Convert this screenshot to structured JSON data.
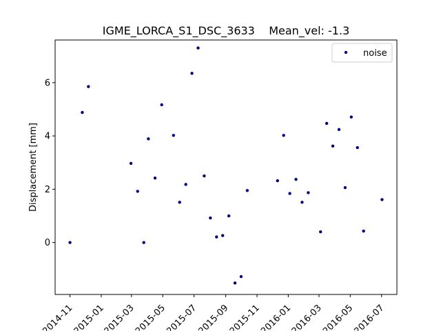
{
  "chart_data": {
    "type": "scatter",
    "title": "IGME_LORCA_S1_DSC_3633    Mean_vel: -1.3",
    "xlabel": "",
    "ylabel": "Displacement [mm]",
    "xlim": [
      "2014-10-03",
      "2016-07-31"
    ],
    "ylim": [
      -1.95,
      7.6
    ],
    "grid": false,
    "legend_position": "top-right",
    "x_ticks": [
      "2014-11",
      "2015-01",
      "2015-03",
      "2015-05",
      "2015-07",
      "2015-09",
      "2015-11",
      "2016-01",
      "2016-03",
      "2016-05",
      "2016-07"
    ],
    "y_ticks": [
      0,
      2,
      4,
      6
    ],
    "series": [
      {
        "name": "noise",
        "color": "#00007f",
        "marker": "point",
        "points": [
          {
            "x": "2014-11-01",
            "y": 0.0
          },
          {
            "x": "2014-11-25",
            "y": 4.88
          },
          {
            "x": "2014-12-07",
            "y": 5.85
          },
          {
            "x": "2015-02-28",
            "y": 2.97
          },
          {
            "x": "2015-03-13",
            "y": 1.92
          },
          {
            "x": "2015-03-25",
            "y": 0.0
          },
          {
            "x": "2015-04-03",
            "y": 3.89
          },
          {
            "x": "2015-04-16",
            "y": 2.42
          },
          {
            "x": "2015-04-29",
            "y": 5.17
          },
          {
            "x": "2015-05-22",
            "y": 4.02
          },
          {
            "x": "2015-06-03",
            "y": 1.51
          },
          {
            "x": "2015-06-15",
            "y": 2.18
          },
          {
            "x": "2015-06-27",
            "y": 6.35
          },
          {
            "x": "2015-07-09",
            "y": 7.3
          },
          {
            "x": "2015-07-21",
            "y": 2.5
          },
          {
            "x": "2015-08-02",
            "y": 0.92
          },
          {
            "x": "2015-08-14",
            "y": 0.21
          },
          {
            "x": "2015-08-26",
            "y": 0.26
          },
          {
            "x": "2015-09-07",
            "y": 1.0
          },
          {
            "x": "2015-09-19",
            "y": -1.52
          },
          {
            "x": "2015-10-01",
            "y": -1.28
          },
          {
            "x": "2015-10-13",
            "y": 1.95
          },
          {
            "x": "2015-12-11",
            "y": 2.32
          },
          {
            "x": "2015-12-23",
            "y": 4.02
          },
          {
            "x": "2016-01-04",
            "y": 1.84
          },
          {
            "x": "2016-01-16",
            "y": 2.37
          },
          {
            "x": "2016-01-28",
            "y": 1.51
          },
          {
            "x": "2016-02-09",
            "y": 1.87
          },
          {
            "x": "2016-03-04",
            "y": 0.4
          },
          {
            "x": "2016-03-16",
            "y": 4.47
          },
          {
            "x": "2016-03-28",
            "y": 3.62
          },
          {
            "x": "2016-04-09",
            "y": 4.24
          },
          {
            "x": "2016-04-21",
            "y": 2.06
          },
          {
            "x": "2016-05-03",
            "y": 4.71
          },
          {
            "x": "2016-05-15",
            "y": 3.56
          },
          {
            "x": "2016-05-27",
            "y": 0.43
          },
          {
            "x": "2016-07-02",
            "y": 1.61
          }
        ]
      }
    ]
  }
}
